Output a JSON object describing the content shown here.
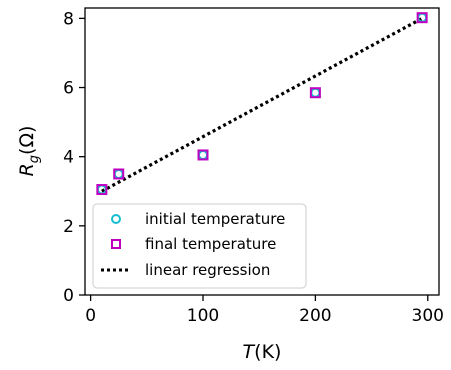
{
  "chart_data": {
    "type": "scatter",
    "xlabel": {
      "base": "T",
      "unit": "(K)"
    },
    "ylabel": {
      "base": "R",
      "sub": "g",
      "unit": "(Ω)"
    },
    "xlim": [
      -5,
      310
    ],
    "ylim": [
      0,
      8.3
    ],
    "xticks": [
      0,
      100,
      200,
      300
    ],
    "yticks": [
      0,
      2,
      4,
      6,
      8
    ],
    "grid": false,
    "legend_position": "bottom-left",
    "series": [
      {
        "name": "initial temperature",
        "marker": "circle",
        "color": "#17becf",
        "x": [
          10,
          25,
          100,
          200,
          295
        ],
        "y": [
          3.05,
          3.5,
          4.05,
          5.85,
          8.02
        ]
      },
      {
        "name": "final temperature",
        "marker": "square",
        "color": "#c000c0",
        "x": [
          10,
          25,
          100,
          200,
          295
        ],
        "y": [
          3.05,
          3.5,
          4.05,
          5.85,
          8.02
        ]
      },
      {
        "name": "linear regression",
        "style": "dotted-line",
        "color": "#000000",
        "x": [
          10,
          295
        ],
        "y": [
          3.0,
          8.0
        ]
      }
    ]
  }
}
